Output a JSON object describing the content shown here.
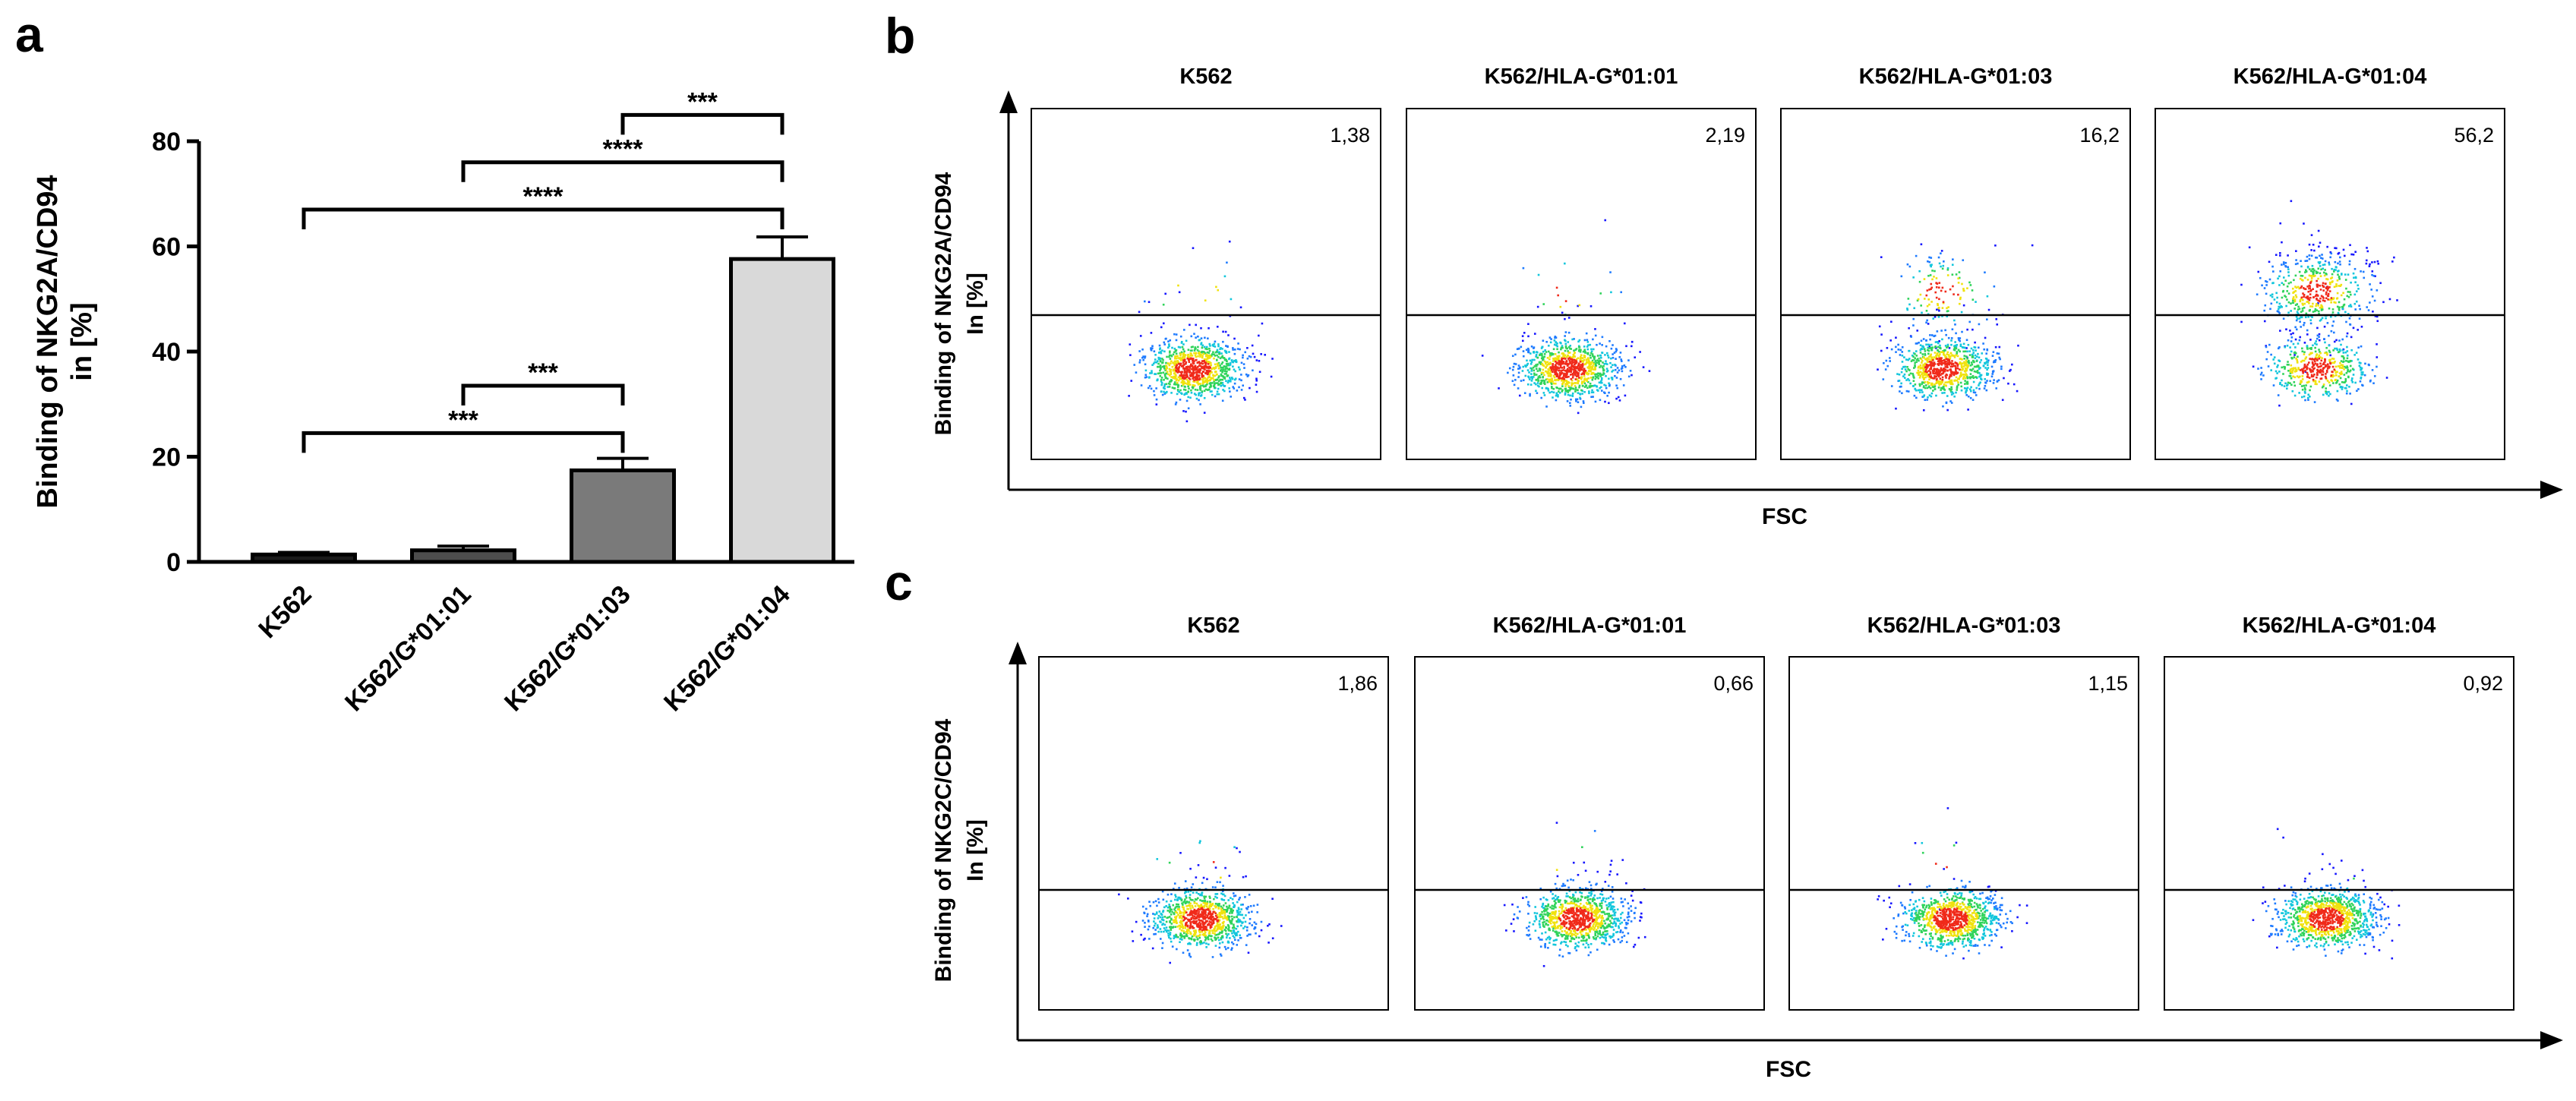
{
  "chart_data": [
    {
      "panel": "a",
      "type": "bar",
      "categories": [
        "K562",
        "K562/G*01:01",
        "K562/G*01:03",
        "K562/G*01:04"
      ],
      "values": [
        1.4,
        2.2,
        17.4,
        57.6
      ],
      "errors": [
        0.4,
        0.8,
        2.3,
        4.2
      ],
      "bar_colors": [
        "#1a1a1a",
        "#4d4d4d",
        "#7a7a7a",
        "#d9d9d9"
      ],
      "ylabel_line1": "Binding of NKG2A/CD94",
      "ylabel_line2": "in [%]",
      "ylim": [
        0,
        80
      ],
      "yticks": [
        "0",
        "20",
        "40",
        "60",
        "80"
      ],
      "significance": [
        {
          "from": 0,
          "to": 2,
          "label": "***"
        },
        {
          "from": 1,
          "to": 2,
          "label": "***"
        },
        {
          "from": 0,
          "to": 3,
          "label": "****"
        },
        {
          "from": 1,
          "to": 3,
          "label": "****"
        },
        {
          "from": 2,
          "to": 3,
          "label": "***"
        }
      ]
    },
    {
      "panel": "b",
      "type": "scatter",
      "ylabel_line1": "Binding of NKG2A/CD94",
      "ylabel_line2": "In [%]",
      "xlabel": "FSC",
      "plots": [
        {
          "title": "K562",
          "value": "1,38"
        },
        {
          "title": "K562/HLA-G*01:01",
          "value": "2,19"
        },
        {
          "title": "K562/HLA-G*01:03",
          "value": "16,2"
        },
        {
          "title": "K562/HLA-G*01:04",
          "value": "56,2"
        }
      ]
    },
    {
      "panel": "c",
      "type": "scatter",
      "ylabel_line1": "Binding of NKG2C/CD94",
      "ylabel_line2": "In [%]",
      "xlabel": "FSC",
      "plots": [
        {
          "title": "K562",
          "value": "1,86"
        },
        {
          "title": "K562/HLA-G*01:01",
          "value": "0,66"
        },
        {
          "title": "K562/HLA-G*01:03",
          "value": "1,15"
        },
        {
          "title": "K562/HLA-G*01:04",
          "value": "0,92"
        }
      ]
    }
  ]
}
